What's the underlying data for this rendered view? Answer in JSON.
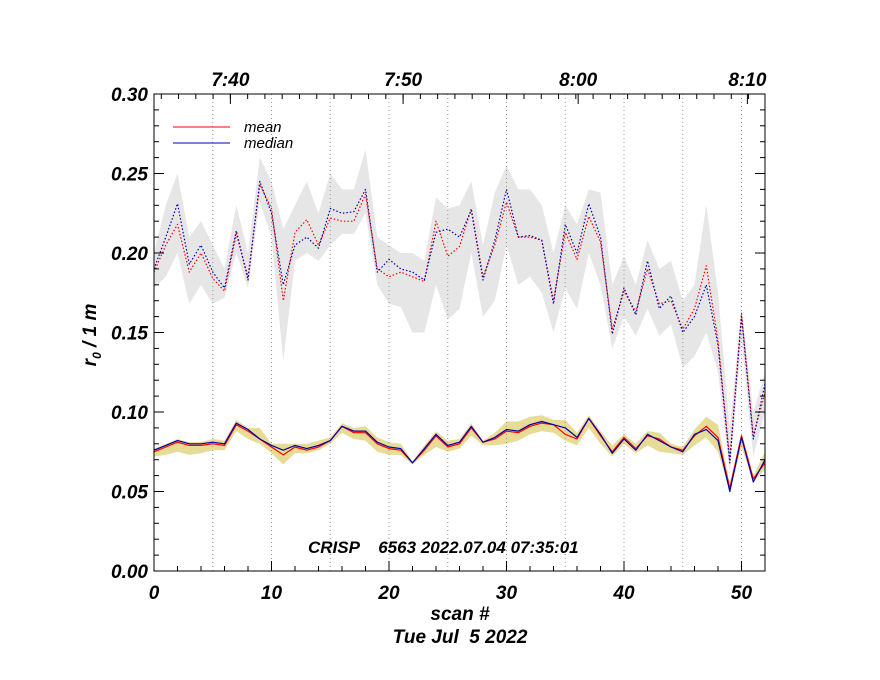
{
  "chart_data": {
    "type": "line",
    "xlabel": "scan #",
    "xlabel_sub": "Tue Jul  5 2022",
    "ylabel": "r",
    "ylabel_subscript": "0",
    "ylabel_suffix": " / 1 m",
    "xlim": [
      0,
      52
    ],
    "ylim": [
      0.0,
      0.3
    ],
    "x_ticks": [
      0,
      10,
      20,
      30,
      40,
      50
    ],
    "x_tick_labels": [
      "0",
      "10",
      "20",
      "30",
      "40",
      "50"
    ],
    "y_ticks": [
      0.0,
      0.05,
      0.1,
      0.15,
      0.2,
      0.25,
      0.3
    ],
    "y_tick_labels": [
      "0.00",
      "0.05",
      "0.10",
      "0.15",
      "0.20",
      "0.25",
      "0.30"
    ],
    "top_axis": {
      "tick_scans": [
        6.5,
        21.2,
        36.1,
        50.5
      ],
      "tick_labels": [
        "7:40",
        "7:50",
        "8:00",
        "8:10"
      ]
    },
    "vgrid_scans": [
      5,
      10,
      15,
      20,
      25,
      30,
      35,
      40,
      45,
      50
    ],
    "legend": [
      {
        "name": "mean",
        "color": "#ff0000"
      },
      {
        "name": "median",
        "color": "#0000aa"
      }
    ],
    "legend_placement": "top-left",
    "annotation": "CRISP    6563 2022.07.04 07:35:01",
    "series": [
      {
        "name": "mean (upper)",
        "color": "#ff0000",
        "style": "dotted",
        "x": [
          0,
          1,
          2,
          3,
          4,
          5,
          6,
          7,
          8,
          9,
          10,
          11,
          12,
          13,
          14,
          15,
          16,
          17,
          18,
          19,
          20,
          21,
          22,
          23,
          24,
          25,
          26,
          27,
          28,
          29,
          30,
          31,
          32,
          33,
          34,
          35,
          36,
          37,
          38,
          39,
          40,
          41,
          42,
          43,
          44,
          45,
          46,
          47,
          48,
          49,
          50,
          51,
          52
        ],
        "values": [
          0.188,
          0.205,
          0.218,
          0.188,
          0.2,
          0.184,
          0.176,
          0.212,
          0.185,
          0.243,
          0.228,
          0.17,
          0.213,
          0.221,
          0.205,
          0.222,
          0.22,
          0.22,
          0.237,
          0.19,
          0.185,
          0.188,
          0.185,
          0.182,
          0.22,
          0.198,
          0.204,
          0.228,
          0.185,
          0.205,
          0.232,
          0.21,
          0.21,
          0.208,
          0.17,
          0.213,
          0.196,
          0.223,
          0.207,
          0.152,
          0.176,
          0.163,
          0.19,
          0.168,
          0.17,
          0.152,
          0.165,
          0.192,
          0.145,
          0.07,
          0.162,
          0.085,
          0.112
        ]
      },
      {
        "name": "median (upper)",
        "color": "#0000aa",
        "style": "dotted",
        "x": [
          0,
          1,
          2,
          3,
          4,
          5,
          6,
          7,
          8,
          9,
          10,
          11,
          12,
          13,
          14,
          15,
          16,
          17,
          18,
          19,
          20,
          21,
          22,
          23,
          24,
          25,
          26,
          27,
          28,
          29,
          30,
          31,
          32,
          33,
          34,
          35,
          36,
          37,
          38,
          39,
          40,
          41,
          42,
          43,
          44,
          45,
          46,
          47,
          48,
          49,
          50,
          51,
          52
        ],
        "values": [
          0.19,
          0.21,
          0.231,
          0.193,
          0.205,
          0.188,
          0.178,
          0.214,
          0.183,
          0.245,
          0.225,
          0.18,
          0.205,
          0.21,
          0.203,
          0.228,
          0.225,
          0.226,
          0.24,
          0.188,
          0.196,
          0.19,
          0.188,
          0.183,
          0.213,
          0.215,
          0.21,
          0.227,
          0.183,
          0.208,
          0.24,
          0.21,
          0.211,
          0.208,
          0.168,
          0.218,
          0.2,
          0.231,
          0.21,
          0.149,
          0.178,
          0.161,
          0.195,
          0.165,
          0.173,
          0.15,
          0.16,
          0.18,
          0.142,
          0.068,
          0.16,
          0.083,
          0.118
        ]
      },
      {
        "name": "mean",
        "color": "#ff0000",
        "style": "solid",
        "x": [
          0,
          1,
          2,
          3,
          4,
          5,
          6,
          7,
          8,
          9,
          10,
          11,
          12,
          13,
          14,
          15,
          16,
          17,
          18,
          19,
          20,
          21,
          22,
          23,
          24,
          25,
          26,
          27,
          28,
          29,
          30,
          31,
          32,
          33,
          34,
          35,
          36,
          37,
          38,
          39,
          40,
          41,
          42,
          43,
          44,
          45,
          46,
          47,
          48,
          49,
          50,
          51,
          52
        ],
        "values": [
          0.075,
          0.078,
          0.081,
          0.079,
          0.079,
          0.08,
          0.079,
          0.092,
          0.088,
          0.083,
          0.078,
          0.073,
          0.078,
          0.076,
          0.078,
          0.082,
          0.091,
          0.087,
          0.087,
          0.08,
          0.077,
          0.076,
          0.068,
          0.076,
          0.085,
          0.078,
          0.08,
          0.09,
          0.081,
          0.083,
          0.088,
          0.087,
          0.091,
          0.093,
          0.092,
          0.086,
          0.083,
          0.096,
          0.085,
          0.075,
          0.084,
          0.077,
          0.085,
          0.083,
          0.078,
          0.076,
          0.085,
          0.091,
          0.084,
          0.052,
          0.085,
          0.058,
          0.068
        ]
      },
      {
        "name": "median",
        "color": "#0000aa",
        "style": "solid",
        "x": [
          0,
          1,
          2,
          3,
          4,
          5,
          6,
          7,
          8,
          9,
          10,
          11,
          12,
          13,
          14,
          15,
          16,
          17,
          18,
          19,
          20,
          21,
          22,
          23,
          24,
          25,
          26,
          27,
          28,
          29,
          30,
          31,
          32,
          33,
          34,
          35,
          36,
          37,
          38,
          39,
          40,
          41,
          42,
          43,
          44,
          45,
          46,
          47,
          48,
          49,
          50,
          51,
          52
        ],
        "values": [
          0.076,
          0.079,
          0.082,
          0.08,
          0.08,
          0.081,
          0.08,
          0.093,
          0.089,
          0.083,
          0.079,
          0.076,
          0.079,
          0.077,
          0.079,
          0.082,
          0.091,
          0.088,
          0.088,
          0.081,
          0.078,
          0.077,
          0.068,
          0.077,
          0.086,
          0.079,
          0.081,
          0.091,
          0.081,
          0.084,
          0.089,
          0.088,
          0.092,
          0.094,
          0.092,
          0.09,
          0.084,
          0.096,
          0.086,
          0.074,
          0.083,
          0.076,
          0.086,
          0.082,
          0.078,
          0.075,
          0.086,
          0.089,
          0.082,
          0.05,
          0.084,
          0.056,
          0.07
        ]
      }
    ],
    "bands": [
      {
        "name": "upper spread",
        "color": "#e6e6e6",
        "x": [
          0,
          1,
          2,
          3,
          4,
          5,
          6,
          7,
          8,
          9,
          10,
          11,
          12,
          13,
          14,
          15,
          16,
          17,
          18,
          19,
          20,
          21,
          22,
          23,
          24,
          25,
          26,
          27,
          28,
          29,
          30,
          31,
          32,
          33,
          34,
          35,
          36,
          37,
          38,
          39,
          40,
          41,
          42,
          43,
          44,
          45,
          46,
          47,
          48,
          49,
          50,
          51,
          52
        ],
        "low": [
          0.178,
          0.185,
          0.2,
          0.168,
          0.18,
          0.168,
          0.172,
          0.2,
          0.178,
          0.232,
          0.21,
          0.132,
          0.195,
          0.2,
          0.195,
          0.205,
          0.212,
          0.212,
          0.225,
          0.18,
          0.168,
          0.166,
          0.15,
          0.15,
          0.18,
          0.158,
          0.165,
          0.2,
          0.16,
          0.17,
          0.205,
          0.18,
          0.185,
          0.175,
          0.15,
          0.178,
          0.165,
          0.2,
          0.18,
          0.14,
          0.16,
          0.148,
          0.165,
          0.148,
          0.155,
          0.128,
          0.135,
          0.15,
          0.125,
          0.062,
          0.145,
          0.072,
          0.1
        ],
        "high": [
          0.2,
          0.23,
          0.25,
          0.21,
          0.22,
          0.205,
          0.19,
          0.23,
          0.2,
          0.26,
          0.245,
          0.215,
          0.23,
          0.245,
          0.225,
          0.25,
          0.24,
          0.24,
          0.265,
          0.21,
          0.205,
          0.2,
          0.2,
          0.195,
          0.235,
          0.228,
          0.23,
          0.245,
          0.205,
          0.238,
          0.255,
          0.24,
          0.24,
          0.23,
          0.2,
          0.23,
          0.218,
          0.24,
          0.238,
          0.18,
          0.198,
          0.18,
          0.208,
          0.19,
          0.195,
          0.17,
          0.18,
          0.23,
          0.175,
          0.09,
          0.165,
          0.1,
          0.125
        ]
      },
      {
        "name": "lower spread",
        "color": "#e6dc96",
        "x": [
          0,
          1,
          2,
          3,
          4,
          5,
          6,
          7,
          8,
          9,
          10,
          11,
          12,
          13,
          14,
          15,
          16,
          17,
          18,
          19,
          20,
          21,
          22,
          23,
          24,
          25,
          26,
          27,
          28,
          29,
          30,
          31,
          32,
          33,
          34,
          35,
          36,
          37,
          38,
          39,
          40,
          41,
          42,
          43,
          44,
          45,
          46,
          47,
          48,
          49,
          50,
          51,
          52
        ],
        "low": [
          0.072,
          0.073,
          0.075,
          0.073,
          0.074,
          0.076,
          0.076,
          0.088,
          0.083,
          0.08,
          0.074,
          0.067,
          0.074,
          0.074,
          0.076,
          0.08,
          0.087,
          0.083,
          0.082,
          0.075,
          0.073,
          0.073,
          0.067,
          0.073,
          0.078,
          0.075,
          0.077,
          0.085,
          0.079,
          0.079,
          0.08,
          0.082,
          0.086,
          0.088,
          0.087,
          0.082,
          0.079,
          0.09,
          0.08,
          0.072,
          0.08,
          0.074,
          0.079,
          0.075,
          0.074,
          0.073,
          0.079,
          0.084,
          0.075,
          0.05,
          0.078,
          0.056,
          0.064
        ],
        "high": [
          0.077,
          0.08,
          0.083,
          0.081,
          0.081,
          0.083,
          0.082,
          0.095,
          0.09,
          0.09,
          0.08,
          0.08,
          0.08,
          0.08,
          0.082,
          0.084,
          0.093,
          0.09,
          0.091,
          0.084,
          0.081,
          0.08,
          0.069,
          0.079,
          0.088,
          0.082,
          0.083,
          0.093,
          0.082,
          0.087,
          0.094,
          0.094,
          0.097,
          0.098,
          0.095,
          0.095,
          0.087,
          0.098,
          0.088,
          0.079,
          0.086,
          0.08,
          0.088,
          0.087,
          0.08,
          0.078,
          0.089,
          0.097,
          0.092,
          0.055,
          0.087,
          0.06,
          0.075
        ]
      }
    ]
  }
}
